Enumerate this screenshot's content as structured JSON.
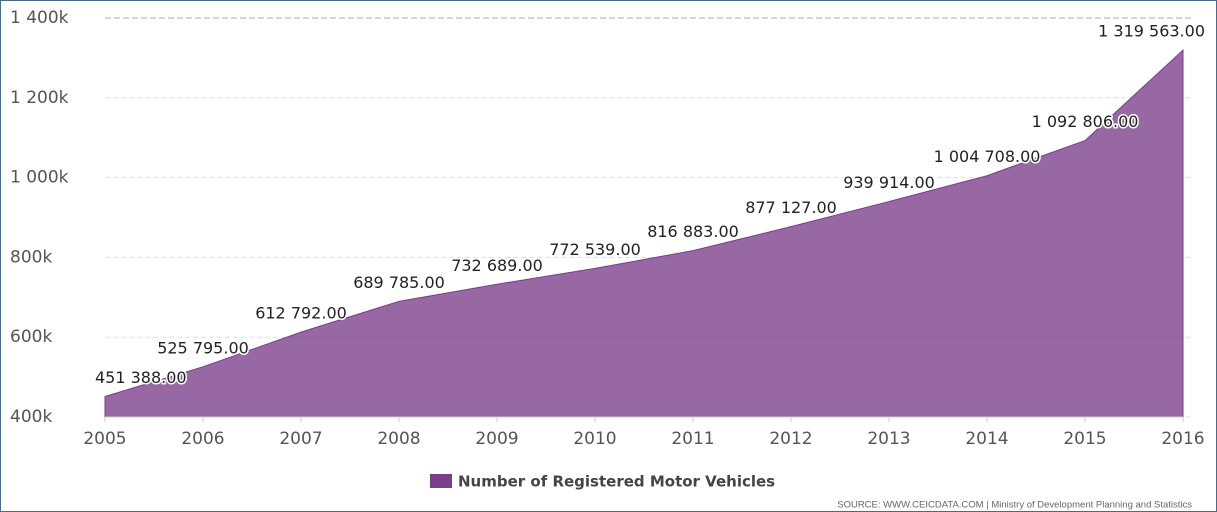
{
  "chart_data": {
    "type": "area",
    "categories": [
      "2005",
      "2006",
      "2007",
      "2008",
      "2009",
      "2010",
      "2011",
      "2012",
      "2013",
      "2014",
      "2015",
      "2016"
    ],
    "series": [
      {
        "name": "Number of Registered Motor Vehicles",
        "color": "#7b3d8a",
        "values": [
          451388,
          525795,
          612792,
          689785,
          732689,
          772539,
          816883,
          877127,
          939914,
          1004708,
          1092806,
          1319563
        ],
        "value_labels": [
          "451 388.00",
          "525 795.00",
          "612 792.00",
          "689 785.00",
          "732 689.00",
          "772 539.00",
          "816 883.00",
          "877 127.00",
          "939 914.00",
          "1 004 708.00",
          "1 092 806.00",
          "1 319 563.00"
        ]
      }
    ],
    "ylim": [
      400000,
      1400000
    ],
    "yticks": [
      {
        "value": 400000,
        "label": "400k"
      },
      {
        "value": 600000,
        "label": "600k"
      },
      {
        "value": 800000,
        "label": "800k"
      },
      {
        "value": 1000000,
        "label": "1 000k"
      },
      {
        "value": 1200000,
        "label": "1 200k"
      },
      {
        "value": 1400000,
        "label": "1 400k"
      }
    ],
    "grid": true,
    "legend": "bottom",
    "source": "SOURCE: WWW.CEICDATA.COM | Ministry of Development Planning and Statistics"
  }
}
